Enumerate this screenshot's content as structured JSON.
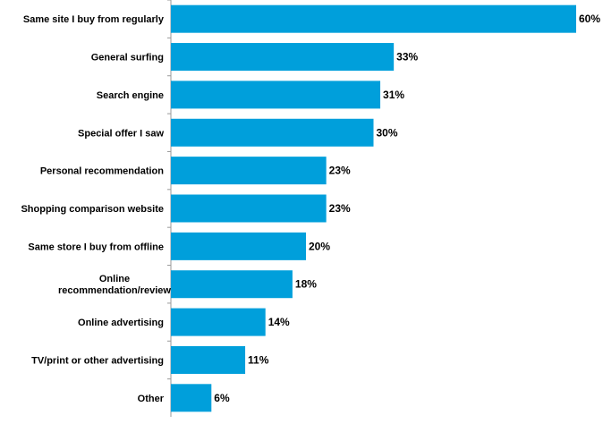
{
  "chart_data": {
    "type": "bar",
    "orientation": "horizontal",
    "categories": [
      "Same site I buy from regularly",
      "General surfing",
      "Search engine",
      "Special offer I saw",
      "Personal recommendation",
      "Shopping comparison website",
      "Same store I buy from offline",
      "Online recommendation/review",
      "Online advertising",
      "TV/print or other advertising",
      "Other"
    ],
    "category_lines": [
      [
        "Same site I buy from regularly"
      ],
      [
        "General surfing"
      ],
      [
        "Search engine"
      ],
      [
        "Special offer I saw"
      ],
      [
        "Personal recommendation"
      ],
      [
        "Shopping comparison website"
      ],
      [
        "Same store I buy from offline"
      ],
      [
        "Online",
        "recommendation/review"
      ],
      [
        "Online advertising"
      ],
      [
        "TV/print or other advertising"
      ],
      [
        "Other"
      ]
    ],
    "values": [
      60,
      33,
      31,
      30,
      23,
      23,
      20,
      18,
      14,
      11,
      6
    ],
    "value_labels": [
      "60%",
      "33%",
      "31%",
      "30%",
      "23%",
      "23%",
      "20%",
      "18%",
      "14%",
      "11%",
      "6%"
    ],
    "title": "",
    "xlabel": "",
    "ylabel": "",
    "xlim": [
      0,
      60
    ],
    "grid": false,
    "legend": "none",
    "colors": {
      "bar": "#009fdb",
      "axis": "#999999",
      "text": "#000000"
    }
  }
}
